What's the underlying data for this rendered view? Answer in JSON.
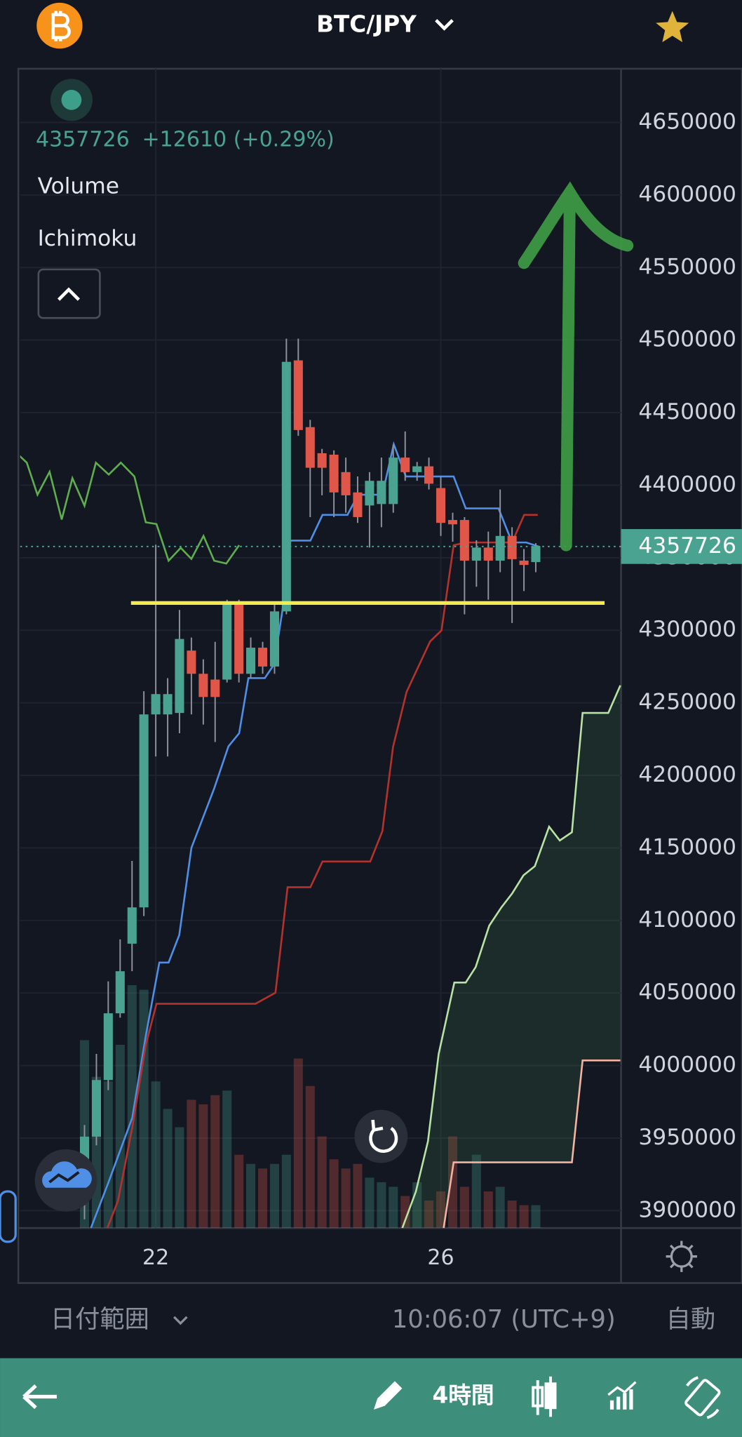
{
  "header": {
    "symbol": "BTC/JPY"
  },
  "legend": {
    "change": "+12610 (+0.29%)",
    "studies": [
      "Volume",
      "Ichimoku"
    ]
  },
  "chart_data": {
    "type": "candlestick",
    "up_color": "#4aa391",
    "down_color": "#e0574a",
    "x": [
      21,
      21.167,
      21.333,
      21.5,
      21.667,
      21.833,
      22,
      22.167,
      22.333,
      22.5,
      22.667,
      22.833,
      23,
      23.167,
      23.333,
      23.5,
      23.667,
      23.833,
      24,
      24.167,
      24.333,
      24.5,
      24.667,
      24.833,
      25,
      25.167,
      25.333,
      25.5,
      25.667,
      25.833,
      26,
      26.167,
      26.333,
      26.5,
      26.667,
      26.833,
      27,
      27.167,
      27.333
    ],
    "open": [
      3919000,
      3951000,
      3990000,
      4036000,
      4084000,
      4109000,
      4242000,
      4242000,
      4243000,
      4286000,
      4270000,
      4266000,
      4266000,
      4319000,
      4270000,
      4288000,
      4275000,
      4313000,
      4486000,
      4440000,
      4422000,
      4421000,
      4409000,
      4395000,
      4386000,
      4387000,
      4387000,
      4419000,
      4409000,
      4413000,
      4398000,
      4376000,
      4376000,
      4348000,
      4357000,
      4348000,
      4365000,
      4348000,
      4347000
    ],
    "high": [
      3959000,
      4008000,
      4058000,
      4087000,
      4141000,
      4258000,
      4359000,
      4267000,
      4314000,
      4295000,
      4280000,
      4292000,
      4321000,
      4321000,
      4295000,
      4292000,
      4318000,
      4501000,
      4501000,
      4445000,
      4425000,
      4424000,
      4419000,
      4406000,
      4409000,
      4419000,
      4428000,
      4437000,
      4416000,
      4419000,
      4406000,
      4381000,
      4378000,
      4362000,
      4368000,
      4397000,
      4371000,
      4356000,
      4360000
    ],
    "low": [
      3894000,
      3945000,
      3983000,
      4033000,
      4065000,
      4103000,
      4213000,
      4213000,
      4229000,
      4242000,
      4235000,
      4223000,
      4264000,
      4264000,
      4267000,
      4270000,
      4270000,
      4311000,
      4434000,
      4378000,
      4393000,
      4378000,
      4381000,
      4374000,
      4357000,
      4371000,
      4381000,
      4403000,
      4403000,
      4397000,
      4365000,
      4361000,
      4311000,
      4330000,
      4321000,
      4340000,
      4305000,
      4327000,
      4340000
    ],
    "close": [
      3951000,
      3990000,
      4036000,
      4065000,
      4109000,
      4242000,
      4256000,
      4256000,
      4294000,
      4270000,
      4254000,
      4254000,
      4319000,
      4270000,
      4288000,
      4275000,
      4313000,
      4485000,
      4438000,
      4412000,
      4412000,
      4395000,
      4393000,
      4378000,
      4403000,
      4403000,
      4419000,
      4409000,
      4413000,
      4401000,
      4374000,
      4373000,
      4348000,
      4357000,
      4348000,
      4365000,
      4349000,
      4345000,
      4358000
    ],
    "volume": {
      "values": [
        205,
        165,
        160,
        200,
        265,
        260,
        160,
        130,
        110,
        140,
        135,
        145,
        150,
        80,
        70,
        65,
        70,
        80,
        185,
        155,
        100,
        75,
        65,
        70,
        55,
        50,
        45,
        35,
        50,
        30,
        40,
        100,
        45,
        80,
        40,
        45,
        30,
        25,
        25
      ]
    },
    "lines": [
      {
        "color": "#4f8fe6",
        "x": [
          21.09,
          21.34,
          21.67,
          21.86,
          22.05,
          22.18,
          22.33,
          22.5,
          22.82,
          23.02,
          23.17,
          23.3,
          23.53,
          23.66,
          23.79,
          23.89,
          24.17,
          24.34,
          24.69,
          24.84,
          25.18,
          25.34,
          25.51,
          25.85,
          26.18,
          26.35,
          26.81,
          27.0,
          27.2,
          27.39
        ],
        "values": [
          3888000,
          3920000,
          3964000,
          4020500,
          4071000,
          4071000,
          4090000,
          4150000,
          4191000,
          4220000,
          4229000,
          4267000,
          4267000,
          4276500,
          4317600,
          4361800,
          4361800,
          4379500,
          4379500,
          4393400,
          4393400,
          4428200,
          4406000,
          4406000,
          4406000,
          4384000,
          4384000,
          4360500,
          4360500,
          4357400
        ]
      },
      {
        "color": "#b5322c",
        "x": [
          21.32,
          21.47,
          21.67,
          21.86,
          22.01,
          23.4,
          23.68,
          23.85,
          24.17,
          24.34,
          25.01,
          25.18,
          25.33,
          25.52,
          25.85,
          26.01,
          26.18,
          26.35,
          27.0,
          27.17,
          27.36
        ],
        "values": [
          3888000,
          3906800,
          3957300,
          4014200,
          4042600,
          4042600,
          4050200,
          4122900,
          4122900,
          4140600,
          4140600,
          4161500,
          4219600,
          4257500,
          4292300,
          4299900,
          4358600,
          4360500,
          4360500,
          4379500,
          4379500
        ]
      },
      {
        "color": "#5fae4e",
        "x": [
          20.08,
          20.19,
          20.34,
          20.51,
          20.68,
          20.83,
          21.0,
          21.16,
          21.34,
          21.51,
          21.7,
          21.86,
          22.01,
          22.18,
          22.35,
          22.5,
          22.67,
          22.82,
          22.99,
          23.17
        ],
        "values": [
          4420600,
          4415500,
          4393400,
          4409200,
          4376300,
          4404800,
          4385800,
          4415500,
          4407300,
          4415500,
          4406000,
          4374400,
          4373200,
          4347900,
          4356800,
          4349200,
          4365000,
          4347900,
          4346000,
          4358600
        ]
      },
      {
        "color": "#b9e3a4",
        "x": [
          25.46,
          25.65,
          25.82,
          25.97,
          26.19,
          26.35,
          26.49,
          26.68,
          26.85,
          27.0,
          27.16,
          27.32,
          27.52,
          27.67,
          27.84,
          27.99,
          28.35,
          28.52
        ],
        "values": [
          3888000,
          3913100,
          3947800,
          4007900,
          4057200,
          4057200,
          4067900,
          4096400,
          4109000,
          4118500,
          4131100,
          4137400,
          4164600,
          4155100,
          4160800,
          4243000,
          4243000,
          4262000
        ]
      },
      {
        "color": "#f2b3a3",
        "x": [
          26.04,
          26.18,
          27.84,
          27.99,
          28.52
        ],
        "values": [
          3888000,
          3933300,
          3933300,
          4003500,
          4003500
        ]
      }
    ],
    "cloud_color": "#3f7a4a",
    "hline": {
      "value": 4318800,
      "color": "#f3ec4a"
    },
    "last_price": 4357726,
    "xlim": [
      20.097,
      28.53
    ],
    "xticks": [
      22,
      26
    ],
    "ylim": [
      3888000,
      4687000
    ],
    "yticks": [
      3900000,
      3950000,
      4000000,
      4050000,
      4100000,
      4150000,
      4200000,
      4250000,
      4300000,
      4350000,
      4400000,
      4450000,
      4500000,
      4550000,
      4600000,
      4650000
    ],
    "grid": true
  },
  "footer": {
    "date_range": "日付範囲",
    "time": "10:06:07 (UTC+9)",
    "auto": "自動"
  },
  "toolbar": {
    "interval": "4時間"
  }
}
